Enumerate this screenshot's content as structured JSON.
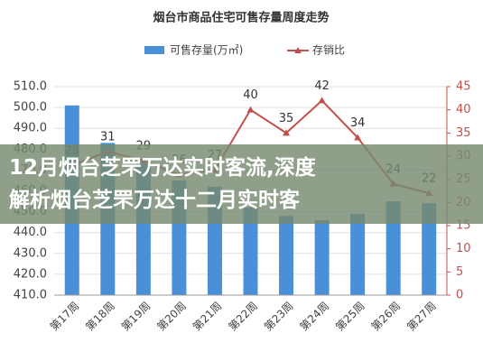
{
  "chart_data": {
    "type": "bar_line",
    "title": "烟台市商品住宅可售存量周度走势",
    "categories": [
      "第17周",
      "第18周",
      "第19周",
      "第20周",
      "第21周",
      "第22周",
      "第23周",
      "第24周",
      "第25周",
      "第26周",
      "第27周"
    ],
    "series": [
      {
        "name": "可售存量(万㎡)",
        "color": "#4a90d9",
        "type": "bar",
        "values": [
          501,
          483,
          473,
          465,
          462,
          452,
          448,
          446,
          449,
          455,
          454
        ]
      },
      {
        "name": "存销比",
        "color": "#c0504d",
        "type": "line",
        "axis": "y2",
        "values": [
          28,
          31,
          29,
          26,
          27,
          40,
          35,
          42,
          34,
          24,
          22
        ]
      }
    ],
    "ylim": [
      410,
      510
    ],
    "yticks": [
      {
        "value": 410,
        "label": "410.0"
      },
      {
        "value": 420,
        "label": "420.0"
      },
      {
        "value": 430,
        "label": "430.0"
      },
      {
        "value": 440,
        "label": "440.0"
      },
      {
        "value": 450,
        "label": "450.0"
      },
      {
        "value": 460,
        "label": "460.0"
      },
      {
        "value": 470,
        "label": "470.0"
      },
      {
        "value": 480,
        "label": "480.0"
      },
      {
        "value": 490,
        "label": "490.0"
      },
      {
        "value": 500,
        "label": "500.0"
      },
      {
        "value": 510,
        "label": "510.0"
      }
    ],
    "y2lim": [
      0,
      45
    ],
    "y2ticks": [
      0,
      5,
      10,
      15,
      20,
      25,
      30,
      35,
      40,
      45
    ],
    "grid": true
  },
  "overlay": {
    "lines": [
      "12月烟台芝罘万达实时客流,深度",
      "解析烟台芝罘万达十二月实时客"
    ]
  }
}
